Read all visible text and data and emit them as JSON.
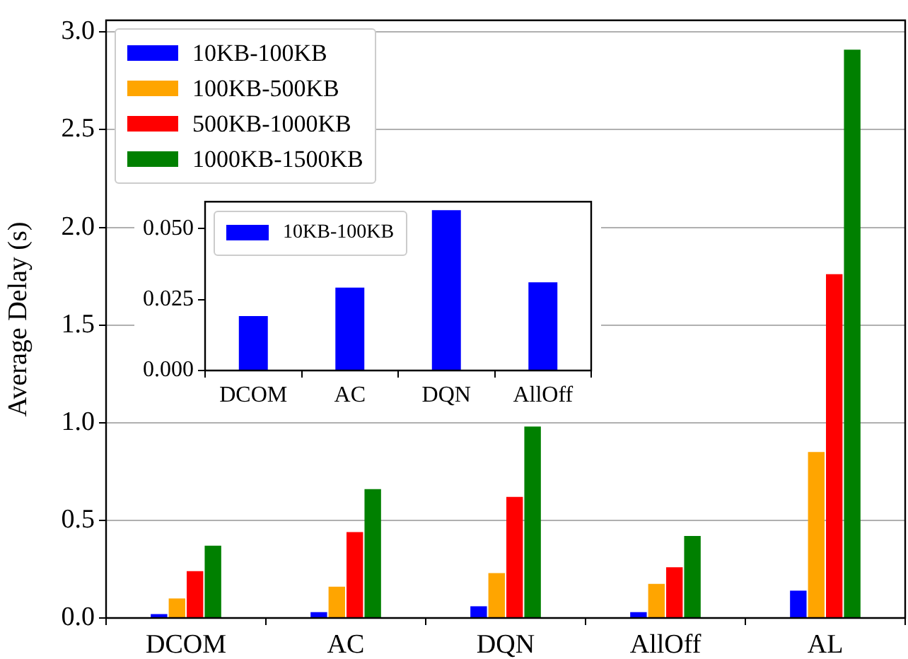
{
  "chart_data": [
    {
      "type": "bar",
      "ylabel": "Average Delay (s)",
      "categories": [
        "DCOM",
        "AC",
        "DQN",
        "AllOff",
        "AL"
      ],
      "series": [
        {
          "name": "10KB-100KB",
          "color": "#0000ff",
          "values": [
            0.02,
            0.03,
            0.06,
            0.03,
            0.14
          ]
        },
        {
          "name": "100KB-500KB",
          "color": "#ffa500",
          "values": [
            0.1,
            0.16,
            0.23,
            0.175,
            0.85
          ]
        },
        {
          "name": "500KB-1000KB",
          "color": "#ff0000",
          "values": [
            0.24,
            0.44,
            0.62,
            0.26,
            1.76
          ]
        },
        {
          "name": "1000KB-1500KB",
          "color": "#008000",
          "values": [
            0.37,
            0.66,
            0.98,
            0.42,
            2.91
          ]
        }
      ],
      "ylim": [
        0,
        3.06
      ],
      "yticks": [
        {
          "value": 0,
          "label": "0.0"
        },
        0.5,
        {
          "value": 1,
          "label": "1.0"
        },
        1.5,
        {
          "value": 2,
          "label": "2.0"
        },
        2.5,
        {
          "value": 3,
          "label": "3.0"
        }
      ],
      "grid": "y",
      "legend": "top left"
    },
    {
      "type": "bar",
      "categories": [
        "DCOM",
        "AC",
        "DQN",
        "AllOff"
      ],
      "series": [
        {
          "name": "10KB-100KB",
          "color": "#0000ff",
          "values": [
            0.0192,
            0.0292,
            0.0565,
            0.0311
          ]
        }
      ],
      "ylim": [
        0,
        0.0595
      ],
      "yticks": [
        {
          "value": 0,
          "label": "0.000"
        },
        {
          "value": 0.025,
          "label": "0.025"
        },
        {
          "value": 0.05,
          "label": "0.050"
        }
      ],
      "legend": "top left"
    }
  ]
}
